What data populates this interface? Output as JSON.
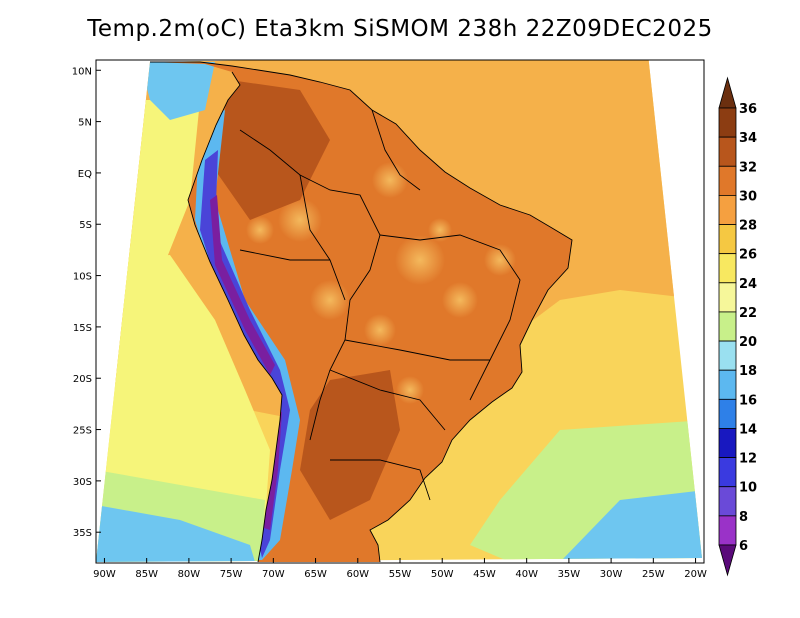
{
  "title": "Temp.2m(oC) Eta3km SiSMOM 238h 22Z09DEC2025",
  "map": {
    "lon_range": [
      -91,
      -19
    ],
    "lat_range": [
      -38,
      11
    ],
    "x_ticks": [
      "90W",
      "85W",
      "80W",
      "75W",
      "70W",
      "65W",
      "60W",
      "55W",
      "50W",
      "45W",
      "40W",
      "35W",
      "30W",
      "25W",
      "20W"
    ],
    "x_tick_values": [
      -90,
      -85,
      -80,
      -75,
      -70,
      -65,
      -60,
      -55,
      -50,
      -45,
      -40,
      -35,
      -30,
      -25,
      -20
    ],
    "y_ticks": [
      "10N",
      "5N",
      "EQ",
      "5S",
      "10S",
      "15S",
      "20S",
      "25S",
      "30S",
      "35S"
    ],
    "y_tick_values": [
      10,
      5,
      0,
      -5,
      -10,
      -15,
      -20,
      -25,
      -30,
      -35
    ],
    "colors": {
      "ocean_tropical": "#f5b14a",
      "ocean_mid": "#f9d45a",
      "ocean_cool": "#f6f57a",
      "ocean_south": "#c8f08a",
      "ocean_far_south": "#6ec6f0",
      "land_hot": "#e0782a",
      "land_very_hot": "#b8561c",
      "andes_cold": "#4a44d8",
      "andes_very_cold": "#7a1fa0",
      "andes_cool": "#5cb8f0"
    }
  },
  "colorbar": {
    "levels": [
      "36",
      "34",
      "32",
      "30",
      "28",
      "26",
      "24",
      "22",
      "20",
      "18",
      "16",
      "14",
      "12",
      "10",
      "8",
      "6"
    ],
    "colors": [
      "#6b2f0f",
      "#8c3d12",
      "#b8561c",
      "#e0782a",
      "#f5a040",
      "#f5c842",
      "#f8e860",
      "#f6f79a",
      "#c8f08a",
      "#9ae0f0",
      "#5cb8f0",
      "#2e80e8",
      "#1818c0",
      "#3a3ae0",
      "#6a4ad8",
      "#9a32c8",
      "#6a0f8f"
    ],
    "top_arrow_color": "#6b2f0f",
    "bottom_arrow_color": "#5a0a7a"
  }
}
